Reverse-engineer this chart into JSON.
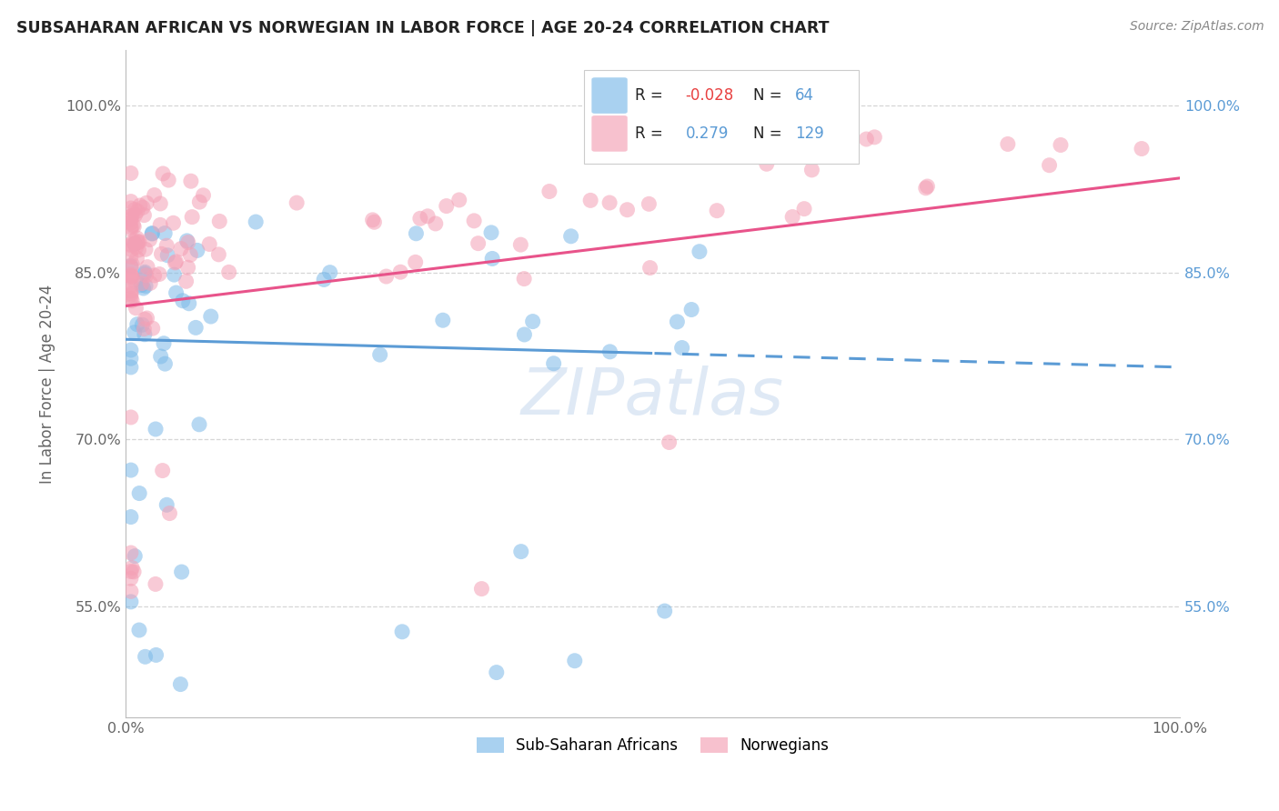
{
  "title": "SUBSAHARAN AFRICAN VS NORWEGIAN IN LABOR FORCE | AGE 20-24 CORRELATION CHART",
  "source": "Source: ZipAtlas.com",
  "ylabel": "In Labor Force | Age 20-24",
  "xlim": [
    0.0,
    1.0
  ],
  "ylim": [
    0.45,
    1.05
  ],
  "yticks": [
    0.55,
    0.7,
    0.85,
    1.0
  ],
  "ytick_labels_left": [
    "55.0%",
    "70.0%",
    "85.0%",
    "100.0%"
  ],
  "ytick_labels_right": [
    "55.0%",
    "70.0%",
    "85.0%",
    "100.0%"
  ],
  "xtick_labels": [
    "0.0%",
    "100.0%"
  ],
  "legend_r_blue": "-0.028",
  "legend_n_blue": "64",
  "legend_r_pink": "0.279",
  "legend_n_pink": "129",
  "blue_color": "#7cb9e8",
  "pink_color": "#f4a0b5",
  "blue_line_color": "#5b9bd5",
  "pink_line_color": "#e8538a",
  "background_color": "#ffffff",
  "grid_color": "#cccccc",
  "watermark_color": "#c5d8ee",
  "title_color": "#222222",
  "label_color": "#666666",
  "right_tick_color": "#5b9bd5",
  "legend_r_color": "#222222",
  "legend_val_color": "#e8538a",
  "legend_n_color": "#222222",
  "legend_nval_color": "#5b9bd5",
  "note": "blue=SubSaharan N=64 R=-0.028, pink=Norwegian N=129 R=0.279"
}
